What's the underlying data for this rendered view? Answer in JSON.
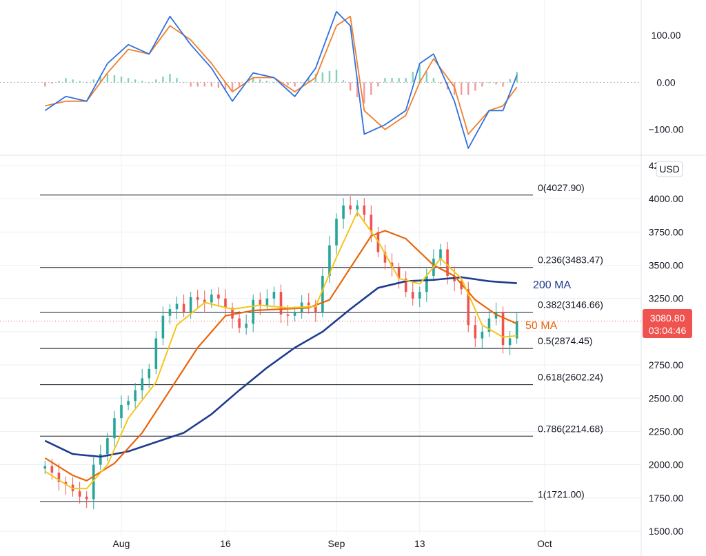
{
  "currency": "USD",
  "colors": {
    "up": "#26a69a",
    "down": "#ef5350",
    "ma200": "#1f3c8e",
    "ma50": "#e8650a",
    "ma20": "#f5c518",
    "osc_fast": "#2f6fe0",
    "osc_slow": "#f07f2a",
    "hist_up": "#7fd1b9",
    "hist_down": "#f19c9a",
    "price_tag": "#ef5350",
    "grid": "#eceff3",
    "fib": "#131722"
  },
  "x_axis": {
    "labels": [
      "Aug",
      "16",
      "Sep",
      "13",
      "Oct"
    ]
  },
  "oscillator": {
    "y_ticks": [
      "100.00",
      "0.00",
      "−100.00"
    ]
  },
  "price_axis": {
    "ticks": [
      "1500.00",
      "1750.00",
      "2000.00",
      "2250.00",
      "2500.00",
      "2750.00",
      "3000.00",
      "3250.00",
      "3500.00",
      "3750.00",
      "4000.00",
      "4250.00"
    ]
  },
  "last_price": {
    "value": "3080.80",
    "countdown": "03:04:46"
  },
  "ma_labels": {
    "ma200": "200 MA",
    "ma50": "50 MA"
  },
  "chart_data": {
    "type": "candlestick",
    "timeframe_start": "Jul 21",
    "timeframe_end": "Sep 27",
    "x_tick_dates": {
      "Aug": "Aug 1",
      "16": "Aug 16",
      "Sep": "Sep 1",
      "13": "Sep 13",
      "Oct": "Oct 1"
    },
    "ylim": [
      1500,
      4300
    ],
    "fibonacci": [
      {
        "label": "0(4027.90)",
        "price": 4027.9
      },
      {
        "label": "0.236(3483.47)",
        "price": 3483.47
      },
      {
        "label": "0.382(3146.66)",
        "price": 3146.66
      },
      {
        "label": "0.5(2874.45)",
        "price": 2874.45
      },
      {
        "label": "0.618(2602.24)",
        "price": 2602.24
      },
      {
        "label": "0.786(2214.68)",
        "price": 2214.68
      },
      {
        "label": "1(1721.00)",
        "price": 1721.0
      }
    ],
    "close_series": [
      [
        "Jul 21",
        1990
      ],
      [
        "Jul 22",
        1940
      ],
      [
        "Jul 23",
        1870
      ],
      [
        "Jul 24",
        1850
      ],
      [
        "Jul 25",
        1800
      ],
      [
        "Jul 26",
        1760
      ],
      [
        "Jul 27",
        1740
      ],
      [
        "Jul 28",
        2000
      ],
      [
        "Jul 29",
        2080
      ],
      [
        "Jul 30",
        2200
      ],
      [
        "Jul 31",
        2350
      ],
      [
        "Aug 1",
        2450
      ],
      [
        "Aug 2",
        2480
      ],
      [
        "Aug 3",
        2560
      ],
      [
        "Aug 4",
        2650
      ],
      [
        "Aug 5",
        2720
      ],
      [
        "Aug 6",
        2950
      ],
      [
        "Aug 7",
        3120
      ],
      [
        "Aug 8",
        3170
      ],
      [
        "Aug 9",
        3210
      ],
      [
        "Aug 10",
        3150
      ],
      [
        "Aug 11",
        3260
      ],
      [
        "Aug 12",
        3240
      ],
      [
        "Aug 13",
        3220
      ],
      [
        "Aug 14",
        3280
      ],
      [
        "Aug 15",
        3250
      ],
      [
        "Aug 16",
        3180
      ],
      [
        "Aug 17",
        3100
      ],
      [
        "Aug 18",
        3030
      ],
      [
        "Aug 19",
        3060
      ],
      [
        "Aug 20",
        3240
      ],
      [
        "Aug 21",
        3200
      ],
      [
        "Aug 22",
        3250
      ],
      [
        "Aug 23",
        3300
      ],
      [
        "Aug 24",
        3130
      ],
      [
        "Aug 25",
        3120
      ],
      [
        "Aug 26",
        3150
      ],
      [
        "Aug 27",
        3220
      ],
      [
        "Aug 28",
        3200
      ],
      [
        "Aug 29",
        3150
      ],
      [
        "Aug 30",
        3420
      ],
      [
        "Aug 31",
        3650
      ],
      [
        "Sep 1",
        3850
      ],
      [
        "Sep 2",
        3950
      ],
      [
        "Sep 3",
        3920
      ],
      [
        "Sep 4",
        3950
      ],
      [
        "Sep 5",
        3880
      ],
      [
        "Sep 6",
        3750
      ],
      [
        "Sep 7",
        3600
      ],
      [
        "Sep 8",
        3520
      ],
      [
        "Sep 9",
        3480
      ],
      [
        "Sep 10",
        3400
      ],
      [
        "Sep 11",
        3300
      ],
      [
        "Sep 12",
        3250
      ],
      [
        "Sep 13",
        3300
      ],
      [
        "Sep 14",
        3420
      ],
      [
        "Sep 15",
        3550
      ],
      [
        "Sep 16",
        3620
      ],
      [
        "Sep 17",
        3420
      ],
      [
        "Sep 18",
        3380
      ],
      [
        "Sep 19",
        3320
      ],
      [
        "Sep 20",
        3050
      ],
      [
        "Sep 21",
        2950
      ],
      [
        "Sep 22",
        3000
      ],
      [
        "Sep 23",
        3100
      ],
      [
        "Sep 24",
        3150
      ],
      [
        "Sep 25",
        2900
      ],
      [
        "Sep 26",
        2950
      ],
      [
        "Sep 27",
        3080
      ]
    ],
    "ma200": [
      [
        "Jul 21",
        2180
      ],
      [
        "Jul 25",
        2080
      ],
      [
        "Jul 29",
        2060
      ],
      [
        "Aug 2",
        2100
      ],
      [
        "Aug 6",
        2170
      ],
      [
        "Aug 10",
        2240
      ],
      [
        "Aug 14",
        2380
      ],
      [
        "Aug 18",
        2560
      ],
      [
        "Aug 22",
        2730
      ],
      [
        "Aug 26",
        2880
      ],
      [
        "Aug 30",
        3000
      ],
      [
        "Sep 3",
        3170
      ],
      [
        "Sep 7",
        3330
      ],
      [
        "Sep 11",
        3380
      ],
      [
        "Sep 15",
        3390
      ],
      [
        "Sep 19",
        3410
      ],
      [
        "Sep 23",
        3380
      ],
      [
        "Sep 27",
        3365
      ]
    ],
    "ma50": [
      [
        "Jul 21",
        2050
      ],
      [
        "Jul 25",
        1920
      ],
      [
        "Jul 27",
        1880
      ],
      [
        "Jul 31",
        2010
      ],
      [
        "Aug 4",
        2240
      ],
      [
        "Aug 8",
        2560
      ],
      [
        "Aug 12",
        2880
      ],
      [
        "Aug 16",
        3120
      ],
      [
        "Aug 20",
        3160
      ],
      [
        "Aug 24",
        3170
      ],
      [
        "Aug 28",
        3180
      ],
      [
        "Aug 31",
        3240
      ],
      [
        "Sep 3",
        3480
      ],
      [
        "Sep 6",
        3720
      ],
      [
        "Sep 8",
        3760
      ],
      [
        "Sep 11",
        3700
      ],
      [
        "Sep 15",
        3500
      ],
      [
        "Sep 18",
        3420
      ],
      [
        "Sep 21",
        3240
      ],
      [
        "Sep 24",
        3130
      ],
      [
        "Sep 27",
        3060
      ]
    ],
    "ma20": [
      [
        "Jul 21",
        1950
      ],
      [
        "Jul 25",
        1820
      ],
      [
        "Jul 27",
        1820
      ],
      [
        "Jul 30",
        2000
      ],
      [
        "Aug 2",
        2350
      ],
      [
        "Aug 6",
        2620
      ],
      [
        "Aug 9",
        3050
      ],
      [
        "Aug 13",
        3220
      ],
      [
        "Aug 17",
        3170
      ],
      [
        "Aug 21",
        3200
      ],
      [
        "Aug 25",
        3180
      ],
      [
        "Aug 29",
        3190
      ],
      [
        "Sep 1",
        3560
      ],
      [
        "Sep 4",
        3900
      ],
      [
        "Sep 7",
        3680
      ],
      [
        "Sep 10",
        3400
      ],
      [
        "Sep 13",
        3360
      ],
      [
        "Sep 16",
        3550
      ],
      [
        "Sep 19",
        3400
      ],
      [
        "Sep 22",
        3050
      ],
      [
        "Sep 25",
        2960
      ],
      [
        "Sep 27",
        2970
      ]
    ],
    "oscillator_fast": [
      [
        "Jul 21",
        -60
      ],
      [
        "Jul 24",
        -30
      ],
      [
        "Jul 27",
        -40
      ],
      [
        "Jul 30",
        40
      ],
      [
        "Aug 2",
        80
      ],
      [
        "Aug 5",
        60
      ],
      [
        "Aug 8",
        140
      ],
      [
        "Aug 11",
        80
      ],
      [
        "Aug 14",
        30
      ],
      [
        "Aug 17",
        -40
      ],
      [
        "Aug 20",
        20
      ],
      [
        "Aug 23",
        10
      ],
      [
        "Aug 26",
        -30
      ],
      [
        "Aug 29",
        30
      ],
      [
        "Sep 1",
        150
      ],
      [
        "Sep 3",
        120
      ],
      [
        "Sep 5",
        -110
      ],
      [
        "Sep 8",
        -90
      ],
      [
        "Sep 11",
        -60
      ],
      [
        "Sep 13",
        40
      ],
      [
        "Sep 15",
        60
      ],
      [
        "Sep 18",
        -40
      ],
      [
        "Sep 20",
        -140
      ],
      [
        "Sep 23",
        -60
      ],
      [
        "Sep 25",
        -60
      ],
      [
        "Sep 27",
        15
      ]
    ],
    "oscillator_slow": [
      [
        "Jul 21",
        -50
      ],
      [
        "Jul 24",
        -40
      ],
      [
        "Jul 27",
        -40
      ],
      [
        "Jul 30",
        20
      ],
      [
        "Aug 2",
        70
      ],
      [
        "Aug 5",
        60
      ],
      [
        "Aug 8",
        120
      ],
      [
        "Aug 11",
        90
      ],
      [
        "Aug 14",
        40
      ],
      [
        "Aug 17",
        -20
      ],
      [
        "Aug 20",
        10
      ],
      [
        "Aug 23",
        10
      ],
      [
        "Aug 26",
        -20
      ],
      [
        "Aug 29",
        10
      ],
      [
        "Sep 1",
        120
      ],
      [
        "Sep 3",
        140
      ],
      [
        "Sep 5",
        -60
      ],
      [
        "Sep 8",
        -100
      ],
      [
        "Sep 11",
        -70
      ],
      [
        "Sep 13",
        0
      ],
      [
        "Sep 15",
        50
      ],
      [
        "Sep 18",
        -10
      ],
      [
        "Sep 20",
        -110
      ],
      [
        "Sep 23",
        -60
      ],
      [
        "Sep 25",
        -50
      ],
      [
        "Sep 27",
        -10
      ]
    ]
  }
}
